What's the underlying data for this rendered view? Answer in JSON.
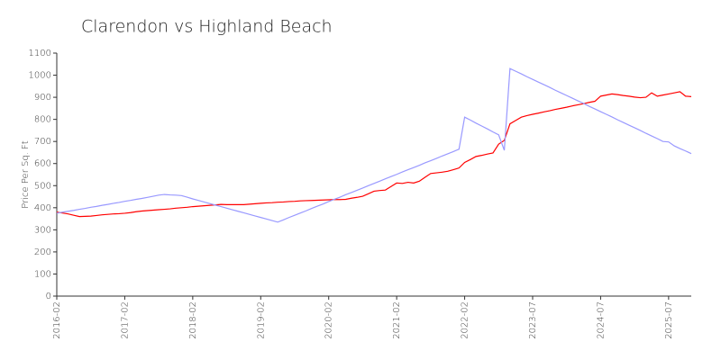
{
  "chart_data": {
    "type": "line",
    "title": "Clarendon vs Highland Beach",
    "y_label": "Price Per Sq. Ft",
    "categories": [
      "2016-02",
      null,
      null,
      null,
      null,
      null,
      null,
      null,
      null,
      null,
      null,
      null,
      "2017-02",
      null,
      null,
      null,
      null,
      null,
      null,
      null,
      null,
      null,
      null,
      null,
      "2018-02",
      null,
      null,
      null,
      null,
      null,
      null,
      null,
      null,
      null,
      null,
      null,
      "2019-02",
      null,
      null,
      null,
      null,
      null,
      null,
      null,
      null,
      null,
      null,
      null,
      "2020-02",
      null,
      null,
      null,
      null,
      null,
      null,
      null,
      null,
      null,
      null,
      null,
      "2021-02",
      null,
      null,
      null,
      null,
      null,
      null,
      null,
      null,
      null,
      null,
      null,
      "2022-02",
      null,
      null,
      null,
      null,
      null,
      null,
      null,
      null,
      null,
      null,
      null,
      "2023-07",
      null,
      null,
      null,
      null,
      null,
      null,
      null,
      null,
      null,
      null,
      null,
      "2024-07",
      null,
      null,
      null,
      null,
      null,
      null,
      null,
      null,
      null,
      null,
      null,
      "2025-07",
      null,
      null,
      null,
      null
    ],
    "series": [
      {
        "color": "#ff0000",
        "values": [
          380,
          376,
          372,
          366,
          360,
          361,
          362,
          365,
          368,
          370,
          372,
          373,
          375,
          378,
          382,
          385,
          387,
          389,
          391,
          393,
          395,
          398,
          400,
          402,
          405,
          407,
          409,
          411,
          413,
          415,
          414,
          414,
          414,
          414,
          416,
          418,
          420,
          422,
          423,
          425,
          426,
          428,
          429,
          431,
          432,
          433,
          434,
          435,
          436,
          437,
          437,
          438,
          443,
          447,
          452,
          463,
          475,
          478,
          480,
          496,
          512,
          510,
          515,
          512,
          520,
          538,
          555,
          558,
          561,
          565,
          572,
          580,
          605,
          618,
          632,
          637,
          643,
          648,
          688,
          705,
          780,
          795,
          810,
          817,
          823,
          828,
          834,
          839,
          845,
          850,
          855,
          861,
          866,
          871,
          877,
          882,
          905,
          910,
          915,
          912,
          908,
          905,
          901,
          898,
          900,
          920,
          905,
          910,
          915,
          920,
          925,
          905,
          903
        ]
      },
      {
        "color": "#9999ff",
        "values": [
          375,
          380,
          384,
          388,
          393,
          397,
          402,
          406,
          411,
          415,
          420,
          424,
          429,
          433,
          438,
          442,
          447,
          452,
          457,
          460,
          458,
          457,
          455,
          448,
          440,
          433,
          426,
          419,
          412,
          405,
          398,
          391,
          384,
          377,
          370,
          363,
          356,
          349,
          342,
          335,
          345,
          356,
          366,
          376,
          386,
          397,
          407,
          417,
          428,
          438,
          448,
          459,
          469,
          479,
          489,
          500,
          510,
          520,
          531,
          541,
          551,
          562,
          572,
          582,
          592,
          603,
          613,
          623,
          634,
          644,
          654,
          665,
          810,
          797,
          783,
          770,
          757,
          743,
          730,
          660,
          1030,
          1018,
          1006,
          993,
          981,
          969,
          957,
          945,
          932,
          920,
          908,
          896,
          884,
          872,
          859,
          847,
          835,
          823,
          811,
          798,
          786,
          774,
          762,
          750,
          737,
          725,
          713,
          700,
          698,
          680,
          668,
          657,
          645
        ]
      }
    ],
    "ylim": [
      0,
      1100
    ],
    "yticks": [
      0,
      100,
      200,
      300,
      400,
      500,
      600,
      700,
      800,
      900,
      1000,
      1100
    ],
    "grid": false
  }
}
